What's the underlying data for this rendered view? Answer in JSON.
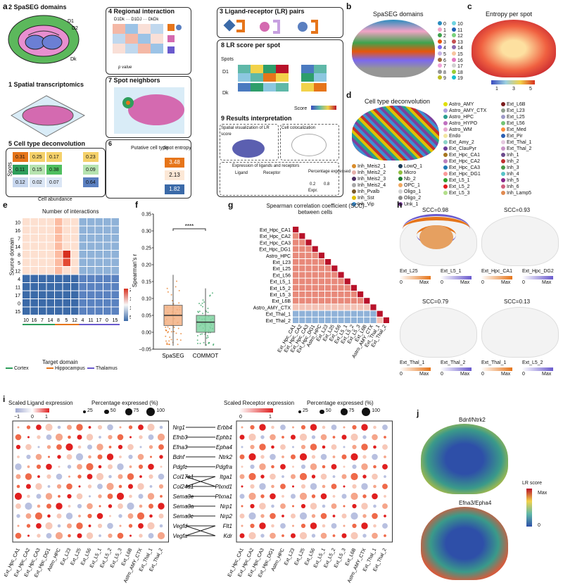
{
  "panels": {
    "a": {
      "label": "a",
      "s2": "2  SpaSEG domains",
      "s1": "1  Spatial transcriptomics",
      "s3": "3  Ligand-receptor (LR) pairs",
      "s4": "4  Regional interaction",
      "s4_cols": "D1Dk  ···  D1DJ  ···  DkDk",
      "s4_pval": "p value",
      "s5": "5  Cell type deconvolution",
      "s5_spots": "Spots",
      "s5_abund": "Cell abundance",
      "s5_rows": [
        [
          "0.31",
          "0.25",
          "0.17",
          "0.23"
        ],
        [
          "0.11",
          "0.15",
          "0.38",
          "0.09"
        ],
        [
          "0.12",
          "0.02",
          "0.07",
          "0.64"
        ]
      ],
      "s6": "6",
      "s6_putative": "Putative cell type",
      "s6_entropy": "Spot entropy",
      "s6_spots": "Spots",
      "s6_values": [
        "3.48",
        "2.13",
        "1.82"
      ],
      "s7": "7  Spot neighbors",
      "s8": "8  LR score per spot",
      "s8_spots": "Spots",
      "s8_d1": "D1",
      "s8_dk": "Dk",
      "s8_score": "Score",
      "s9": "9  Results interpretation",
      "s9_spatial": "Spatial visualization of LR score",
      "s9_coloc": "Cell colocalization",
      "s9_expr": "Expression of ligands and receptors",
      "s9_ligand": "Ligand",
      "s9_receptor": "Receptor",
      "s9_pct": "Percentage expressed",
      "s9_pct_vals": [
        "0.2",
        "0.8"
      ],
      "s9_exprlab": "Expr.",
      "d_labels": [
        "D1",
        "D2",
        "Dk"
      ]
    },
    "b": {
      "label": "b",
      "title": "SpaSEG domains",
      "legend": [
        "0",
        "1",
        "2",
        "3",
        "4",
        "5",
        "6",
        "7",
        "8",
        "9",
        "10",
        "11",
        "12",
        "13",
        "14",
        "15",
        "16",
        "17",
        "18",
        "19"
      ],
      "colors": [
        "#2b8cbe",
        "#f2a3c6",
        "#3fa34d",
        "#e6550d",
        "#7b68ee",
        "#c6b3e6",
        "#9e6b3f",
        "#f0a0d8",
        "#969696",
        "#bcbd22",
        "#6fd3e0",
        "#1f5fb4",
        "#7bd27b",
        "#c44e52",
        "#8c6bb1",
        "#f7c59f",
        "#e377c2",
        "#d0d0d0",
        "#9acd32",
        "#17becf"
      ]
    },
    "c": {
      "label": "c",
      "title": "Entropy per spot",
      "ticks": [
        "1",
        "3",
        "5"
      ]
    },
    "d": {
      "label": "d",
      "title": "Cell type deconvolution",
      "col1": [
        [
          "Inh_Meis2_1",
          "#d98c2b"
        ],
        [
          "Inh_Meis2_2",
          "#e6b0aa"
        ],
        [
          "Inh_Meis2_3",
          "#4b2e63"
        ],
        [
          "Inh_Meis2_4",
          "#a8a8a8"
        ],
        [
          "Inh_Pvalb",
          "#7a5a2a"
        ],
        [
          "Inh_Sst",
          "#e0c000"
        ],
        [
          "Inh_Vip",
          "#3d8fd1"
        ]
      ],
      "col2": [
        [
          "LowQ_1",
          "#1b3a57"
        ],
        [
          "Micro",
          "#8fbf3f"
        ],
        [
          "Nb_2",
          "#1b7b2f"
        ],
        [
          "OPC_1",
          "#f0a860"
        ],
        [
          "Oligo_1",
          "#d0d0d0"
        ],
        [
          "Oligo_2",
          "#8c8c8c"
        ],
        [
          "Unk_1",
          "#7b3f9e"
        ]
      ],
      "col3": [
        [
          "Astro_AMY",
          "#e0e000"
        ],
        [
          "Astro_AMY_CTX",
          "#b0a0e0"
        ],
        [
          "Astro_HPC",
          "#2a9d8f"
        ],
        [
          "Astro_HYPO",
          "#c070c0"
        ],
        [
          "Astro_WM",
          "#e6a8d0"
        ],
        [
          "Endo",
          "#f2e6a0"
        ],
        [
          "Ext_Amy_2",
          "#8bd3c7"
        ],
        [
          "Ext_ClauPyr",
          "#6a3d9a"
        ],
        [
          "Ext_Hpc_CA1",
          "#a6761d"
        ],
        [
          "Ext_Hpc_CA2",
          "#bc80bd"
        ],
        [
          "Ext_Hpc_CA3",
          "#1f78b4"
        ],
        [
          "Ext_Hpc_DG1",
          "#fb9a99"
        ],
        [
          "Ext_L5_1",
          "#33a02c"
        ],
        [
          "Ext_L5_2",
          "#e31a1c"
        ],
        [
          "Ext_L5_3",
          "#b2df8a"
        ]
      ],
      "col4": [
        [
          "Ext_L6B",
          "#7b1d1d"
        ],
        [
          "Ext_L23",
          "#90a090"
        ],
        [
          "Ext_L25",
          "#9e9ac8"
        ],
        [
          "Ext_L56",
          "#74c476"
        ],
        [
          "Ext_Med",
          "#fd8d3c"
        ],
        [
          "Ext_Pir",
          "#2b5fb3"
        ],
        [
          "Ext_Thal_1",
          "#e6c8e0"
        ],
        [
          "Ext_Thal_2",
          "#c994c7"
        ],
        [
          "Inh_1",
          "#6d4c8d"
        ],
        [
          "Inh_2",
          "#c03030"
        ],
        [
          "Inh_3",
          "#4a9a4a"
        ],
        [
          "Inh_4",
          "#58c4c8"
        ],
        [
          "Inh_5",
          "#8a2a8a"
        ],
        [
          "Inh_6",
          "#d06080"
        ],
        [
          "Inh_Lamp5",
          "#e08a50"
        ]
      ]
    },
    "e": {
      "label": "e",
      "title": "Number of interactions",
      "ylabel": "Source domain",
      "xlabel": "Target domain",
      "rows": [
        "10",
        "16",
        "7",
        "14",
        "8",
        "5",
        "12",
        "4",
        "11",
        "17",
        "0",
        "15"
      ],
      "cols": [
        "10",
        "16",
        "7",
        "14",
        "8",
        "5",
        "12",
        "4",
        "11",
        "17",
        "0",
        "15"
      ],
      "cbar": [
        "200",
        "150",
        "100",
        "50"
      ],
      "groups": [
        [
          "Cortex",
          "#2e9e5b"
        ],
        [
          "Hippocampus",
          "#e6751a"
        ],
        [
          "Thalamus",
          "#6a5acd"
        ]
      ]
    },
    "f": {
      "label": "f",
      "ylabel": "Spearman's r",
      "sig": "****",
      "yticks": [
        "0.35",
        "0.30",
        "0.25",
        "0.20",
        "0.15",
        "0.10",
        "0.05",
        "0.00",
        "−0.05"
      ],
      "groups": [
        "SpaSEG",
        "COMMOT"
      ]
    },
    "g": {
      "label": "g",
      "title": "Spearman correlation coefficient (SCC) between cells",
      "cells": [
        "Ext_Hpc_CA1",
        "Ext_Hpc_CA2",
        "Ext_Hpc_CA3",
        "Ext_Hpc_DG1",
        "Astro_HPC",
        "Ext_L23",
        "Ext_L25",
        "Ext_L56",
        "Ext_L5_1",
        "Ext_L5_2",
        "Ext_L5_3",
        "Ext_L6B",
        "Astro_AMY_CTX",
        "Ext_Thal_1",
        "Ext_Thal_2"
      ],
      "cbar": [
        "1.0",
        "0.5",
        "0",
        "−0.5"
      ]
    },
    "h": {
      "label": "h",
      "items": [
        {
          "scc": "SCC=0.98",
          "a": "Ext_L25",
          "b": "Ext_L5_1"
        },
        {
          "scc": "SCC=0.93",
          "a": "Ext_Hpc_CA1",
          "b": "Ext_Hpc_DG2"
        },
        {
          "scc": "SCC=0.79",
          "a": "Ext_Thal_1",
          "b": "Ext_Thal_2"
        },
        {
          "scc": "SCC=0.13",
          "a": "Ext_Thal_1",
          "b": "Ext_L5_2"
        }
      ],
      "zero": "0",
      "max": "Max"
    },
    "i": {
      "label": "i",
      "lig_title": "Scaled Ligand expression",
      "rec_title": "Scaled Receptor expression",
      "pct_title": "Percentage expressed (%)",
      "pct": [
        "25",
        "50",
        "75",
        "100"
      ],
      "lig_ticks": [
        "−1",
        "0",
        "1"
      ],
      "rec_ticks": [
        "0",
        "1"
      ],
      "ligands": [
        "Nrg1",
        "Efnb3",
        "Efna3",
        "Bdnf",
        "Pdgfc",
        "Col17a1",
        "Col24a1",
        "Sema3e",
        "Sema3a",
        "Sema3c",
        "Vegfd",
        "Vegfa"
      ],
      "receptors": [
        "Erbb4",
        "Ephb1",
        "Epha4",
        "Ntrk2",
        "Pdgfra",
        "Itga1",
        "Plxnd1",
        "Plxna1",
        "Nrp1",
        "Nrp2",
        "Flt1",
        "Kdr"
      ],
      "lig_cells": [
        "Ext_Hpc_CA1",
        "Ext_Hpc_CA2",
        "Ext_Hpc_CA3",
        "Ext_Hpc_DG1",
        "Astro_HPC",
        "Ext_L23",
        "Ext_L25",
        "Ext_L56",
        "Ext_L5_1",
        "Ext_L5_2",
        "Ext_L5_3",
        "Ext_L6B",
        "Astro_AMY_CTX",
        "Ext_Thal_1",
        "Ext_Thal_2"
      ],
      "rec_cells": [
        "Ext_Hpc_CA1",
        "Ext_Hpc_CA2",
        "Ext_Hpc_CA3",
        "Ext_Hpc_DG1",
        "Astro_HPC",
        "Ext_L23",
        "Ext_L25",
        "Ext_L56",
        "Ext_L5_1",
        "Ext_L5_2",
        "Ext_L5_3",
        "Ext_L6B",
        "Astro_AMY_CTX",
        "Ext_Thal_1",
        "Ext_Thal_2"
      ]
    },
    "j": {
      "label": "j",
      "t1": "Bdnf/Ntrk2",
      "t2": "Efna3/Epha4",
      "cbar_title": "LR score",
      "cbar_max": "Max",
      "cbar_min": "0"
    }
  }
}
